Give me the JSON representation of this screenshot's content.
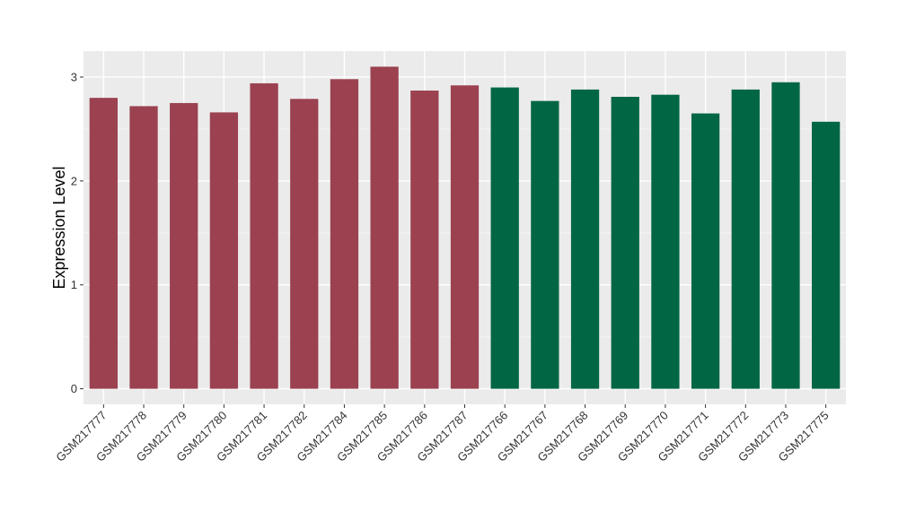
{
  "chart_data": {
    "type": "bar",
    "title": "",
    "xlabel": "",
    "ylabel": "Expression Level",
    "ylim": [
      -0.15,
      3.25
    ],
    "yticks": [
      0,
      1,
      2,
      3
    ],
    "grid": true,
    "legend": "none",
    "colors": {
      "group_a": "#9B4150",
      "group_b": "#006644",
      "panel_bg": "#EBEBEB",
      "grid_major": "#FFFFFF"
    },
    "categories": [
      "GSM217777",
      "GSM217778",
      "GSM217779",
      "GSM217780",
      "GSM217781",
      "GSM217782",
      "GSM217784",
      "GSM217785",
      "GSM217786",
      "GSM217787",
      "GSM217766",
      "GSM217767",
      "GSM217768",
      "GSM217769",
      "GSM217770",
      "GSM217771",
      "GSM217772",
      "GSM217773",
      "GSM217775"
    ],
    "values": [
      2.8,
      2.72,
      2.75,
      2.66,
      2.94,
      2.79,
      2.98,
      3.1,
      2.87,
      2.92,
      2.9,
      2.77,
      2.88,
      2.81,
      2.83,
      2.65,
      2.88,
      2.95,
      2.57
    ],
    "groups": [
      "a",
      "a",
      "a",
      "a",
      "a",
      "a",
      "a",
      "a",
      "a",
      "a",
      "b",
      "b",
      "b",
      "b",
      "b",
      "b",
      "b",
      "b",
      "b"
    ]
  }
}
